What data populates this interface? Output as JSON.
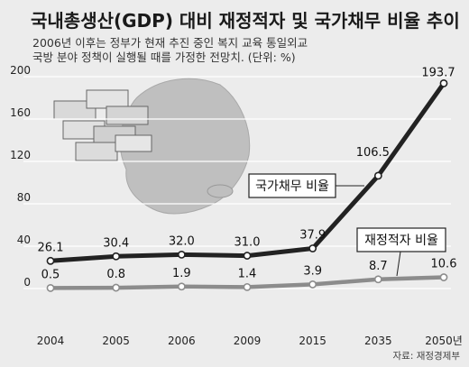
{
  "chart_data": {
    "type": "line",
    "title": "국내총생산(GDP) 대비 재정적자 및 국가채무 비율 추이",
    "subtitle_line1": "2006년 이후는 정부가 현재 추진 중인 복지 교육 통일외교",
    "subtitle_line2": "국방 분야 정책이 실행될 때를 가정한 전망치. (단위: %)",
    "categories": [
      "2004",
      "2005",
      "2006",
      "2009",
      "2015",
      "2035",
      "2050년"
    ],
    "ylim": [
      0,
      200
    ],
    "yticks": [
      "0",
      "40",
      "80",
      "120",
      "160",
      "200"
    ],
    "series": [
      {
        "name": "국가채무 비율",
        "values": [
          26.1,
          30.4,
          32.0,
          31.0,
          37.9,
          106.5,
          193.7
        ],
        "labels": [
          "26.1",
          "30.4",
          "32.0",
          "31.0",
          "37.9",
          "106.5",
          "193.7"
        ],
        "color": "#222222"
      },
      {
        "name": "재정적자 비율",
        "values": [
          0.5,
          0.8,
          1.9,
          1.4,
          3.9,
          8.7,
          10.6
        ],
        "labels": [
          "0.5",
          "0.8",
          "1.9",
          "1.4",
          "3.9",
          "8.7",
          "10.6"
        ],
        "color": "#8c8c8c"
      }
    ],
    "source": "자료: 재정경제부",
    "grid": true
  }
}
